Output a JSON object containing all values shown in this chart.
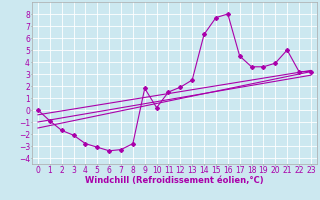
{
  "bg_color": "#cce8f0",
  "line_color": "#aa00aa",
  "grid_color": "#ffffff",
  "xlabel": "Windchill (Refroidissement éolien,°C)",
  "xlabel_fontsize": 6.0,
  "tick_fontsize": 5.5,
  "xlim": [
    -0.5,
    23.5
  ],
  "ylim": [
    -4.5,
    9.0
  ],
  "xticks": [
    0,
    1,
    2,
    3,
    4,
    5,
    6,
    7,
    8,
    9,
    10,
    11,
    12,
    13,
    14,
    15,
    16,
    17,
    18,
    19,
    20,
    21,
    22,
    23
  ],
  "yticks": [
    -4,
    -3,
    -2,
    -1,
    0,
    1,
    2,
    3,
    4,
    5,
    6,
    7,
    8
  ],
  "main_line_x": [
    0,
    1,
    2,
    3,
    4,
    5,
    6,
    7,
    8,
    9,
    10,
    11,
    12,
    13,
    14,
    15,
    16,
    17,
    18,
    19,
    20,
    21,
    22,
    23
  ],
  "main_line_y": [
    0,
    -0.9,
    -1.7,
    -2.1,
    -2.8,
    -3.1,
    -3.4,
    -3.3,
    -2.8,
    1.8,
    0.2,
    1.5,
    1.9,
    2.5,
    6.3,
    7.7,
    8.0,
    4.5,
    3.6,
    3.6,
    3.9,
    5.0,
    3.2,
    3.2
  ],
  "reg_line1_x": [
    0,
    23
  ],
  "reg_line1_y": [
    -1.5,
    3.2
  ],
  "reg_line2_x": [
    0,
    23
  ],
  "reg_line2_y": [
    -1.0,
    2.9
  ],
  "reg_line3_x": [
    0,
    23
  ],
  "reg_line3_y": [
    -0.4,
    3.3
  ]
}
